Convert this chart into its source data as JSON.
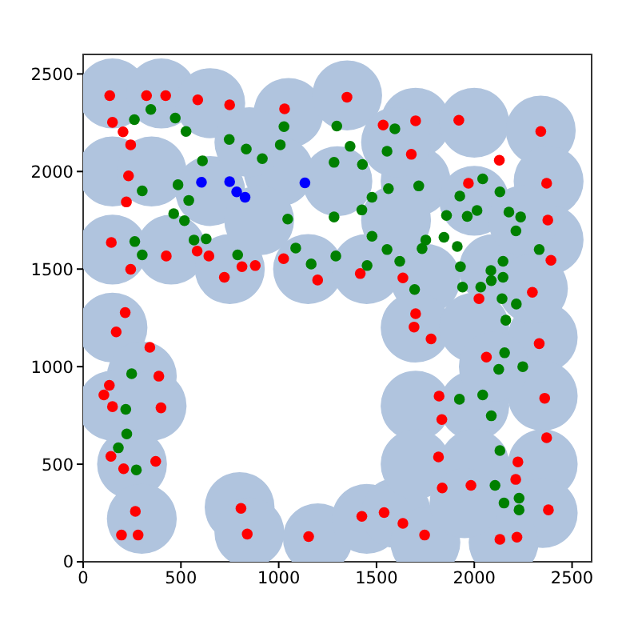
{
  "chart_data": {
    "type": "scatter",
    "marker": "circle",
    "xlim": [
      0,
      2600
    ],
    "ylim": [
      0,
      2600
    ],
    "xticks": [
      0,
      500,
      1000,
      1500,
      2000,
      2500
    ],
    "yticks": [
      0,
      500,
      1000,
      1500,
      2000,
      2500
    ],
    "grid": false,
    "series": [
      {
        "type": "bubble",
        "color": "#b0c4de",
        "x": [
          150,
          400,
          650,
          1050,
          1350,
          1700,
          2000,
          2340,
          150,
          350,
          650,
          1000,
          1300,
          1700,
          2000,
          2380,
          150,
          450,
          750,
          1150,
          1450,
          1750,
          2100,
          2380,
          1700,
          2000,
          2350,
          150,
          300,
          150,
          350,
          250,
          300,
          800,
          850,
          1200,
          1450,
          1600,
          1750,
          1700,
          1700,
          2000,
          2000,
          2350,
          2350,
          2200,
          2350,
          2150,
          1950,
          850,
          1600,
          900,
          1600,
          2250,
          2300,
          2100
        ],
        "values": [
          2400,
          2400,
          2350,
          2300,
          2390,
          2250,
          2250,
          2210,
          2000,
          2000,
          1900,
          2000,
          1950,
          1950,
          1850,
          1950,
          1600,
          1600,
          1500,
          1500,
          1500,
          1450,
          1500,
          1650,
          1200,
          1200,
          1150,
          1200,
          950,
          800,
          800,
          500,
          220,
          280,
          150,
          120,
          220,
          250,
          100,
          800,
          500,
          800,
          500,
          850,
          500,
          300,
          250,
          100,
          300,
          2150,
          2150,
          1750,
          1750,
          1750,
          1400,
          1000
        ],
        "sizes": [
          1,
          1,
          1,
          1,
          1,
          1,
          1,
          1,
          1,
          1,
          1,
          1,
          1,
          1,
          1,
          1,
          1,
          1,
          1,
          1,
          1,
          1,
          1,
          1,
          1,
          1,
          1,
          1,
          1,
          1,
          1,
          1,
          1,
          1,
          1,
          1,
          1,
          1,
          1,
          1,
          1,
          1,
          1,
          1,
          1,
          1,
          1,
          1,
          1,
          1,
          1,
          1,
          1,
          1,
          1,
          1
        ]
      },
      {
        "color": "#ff0000",
        "x": [
          136,
          324,
          422,
          586,
          749,
          1030,
          150,
          204,
          243,
          232,
          221,
          144,
          243,
          425,
          583,
          643,
          722,
          812,
          880,
          1025,
          1349,
          1534,
          1700,
          1921,
          1678,
          2340,
          2128,
          1970,
          2370,
          2376,
          2392,
          1199,
          1417,
          1635,
          2024,
          2297,
          1700,
          1692,
          1779,
          2062,
          2332,
          1820,
          1834,
          2360,
          2370,
          1817,
          2223,
          2212,
          1836,
          1983,
          2379,
          1425,
          1539,
          1635,
          1746,
          2131,
          2218,
          1153,
          215,
          169,
          341,
          387,
          134,
          106,
          150,
          398,
          142,
          207,
          371,
          267,
          196,
          281,
          807,
          839
        ],
        "values": [
          2389,
          2389,
          2389,
          2367,
          2342,
          2321,
          2252,
          2203,
          2137,
          1978,
          1844,
          1636,
          1499,
          1567,
          1592,
          1567,
          1458,
          1512,
          1518,
          1553,
          2381,
          2238,
          2260,
          2263,
          2088,
          2205,
          2058,
          1940,
          1940,
          1751,
          1545,
          1444,
          1477,
          1455,
          1348,
          1381,
          1271,
          1203,
          1142,
          1049,
          1118,
          849,
          729,
          838,
          636,
          537,
          512,
          422,
          378,
          392,
          266,
          233,
          252,
          197,
          137,
          115,
          126,
          129,
          1277,
          1178,
          1099,
          951,
          904,
          855,
          795,
          789,
          540,
          477,
          515,
          258,
          137,
          137,
          274,
          142
        ]
      },
      {
        "color": "#008000",
        "x": [
          262,
          346,
          471,
          526,
          747,
          834,
          916,
          1008,
          1027,
          610,
          302,
          485,
          540,
          463,
          518,
          264,
          302,
          567,
          629,
          790,
          1046,
          1087,
          1166,
          1297,
          1365,
          1283,
          1428,
          1554,
          1594,
          1716,
          1561,
          1477,
          1425,
          1283,
          1858,
          1926,
          1964,
          2014,
          2043,
          2131,
          2177,
          2237,
          2213,
          2332,
          1477,
          1554,
          1619,
          1733,
          1752,
          1845,
          1913,
          1929,
          1695,
          1940,
          2033,
          2085,
          2087,
          2147,
          2147,
          2142,
          2215,
          1452,
          1292,
          2161,
          2155,
          2125,
          2248,
          1924,
          2043,
          2087,
          2131,
          2106,
          2152,
          2229,
          2229,
          248,
          218,
          223,
          180,
          272
        ],
        "values": [
          2266,
          2318,
          2274,
          2205,
          2164,
          2115,
          2066,
          2137,
          2230,
          2055,
          1901,
          1932,
          1852,
          1784,
          1748,
          1641,
          1573,
          1649,
          1655,
          1573,
          1756,
          1608,
          1526,
          2233,
          2129,
          2047,
          2036,
          2104,
          2219,
          1926,
          1912,
          1868,
          1803,
          1767,
          1775,
          1874,
          1770,
          1800,
          1962,
          1896,
          1792,
          1767,
          1696,
          1600,
          1668,
          1600,
          1540,
          1605,
          1649,
          1663,
          1616,
          1512,
          1395,
          1408,
          1408,
          1493,
          1441,
          1540,
          1458,
          1348,
          1321,
          1518,
          1567,
          1238,
          1071,
          986,
          1000,
          833,
          855,
          748,
          570,
          392,
          301,
          326,
          266,
          964,
          781,
          655,
          584,
          471
        ]
      },
      {
        "color": "#0000ff",
        "x": [
          605,
          749,
          785,
          828,
          1134
        ],
        "values": [
          1945,
          1948,
          1896,
          1868,
          1942
        ]
      }
    ]
  }
}
